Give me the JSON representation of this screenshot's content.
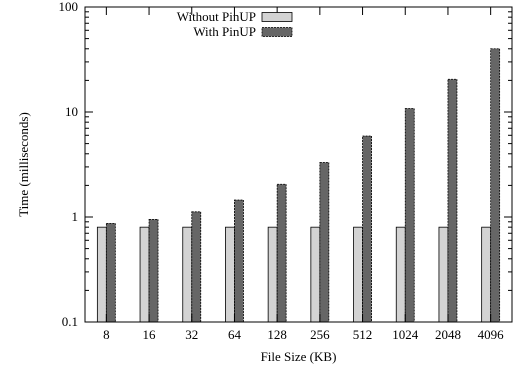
{
  "chart_data": {
    "type": "bar",
    "title": "",
    "xlabel": "File Size (KB)",
    "ylabel": "Time (milliseconds)",
    "yscale": "log",
    "ylim": [
      0.1,
      100
    ],
    "yticks": [
      "0.1",
      "1",
      "10",
      "100"
    ],
    "grid": false,
    "legend_position": "top-left",
    "categories": [
      "8",
      "16",
      "32",
      "64",
      "128",
      "256",
      "512",
      "1024",
      "2048",
      "4096"
    ],
    "series": [
      {
        "name": "Without PinUP",
        "color": "#d3d3d3",
        "values": [
          0.8,
          0.8,
          0.8,
          0.8,
          0.8,
          0.8,
          0.8,
          0.8,
          0.8,
          0.8
        ]
      },
      {
        "name": "With PinUP",
        "color": "#666666",
        "values": [
          0.87,
          0.95,
          1.12,
          1.45,
          2.05,
          3.3,
          5.9,
          10.8,
          20.5,
          40
        ]
      }
    ]
  }
}
